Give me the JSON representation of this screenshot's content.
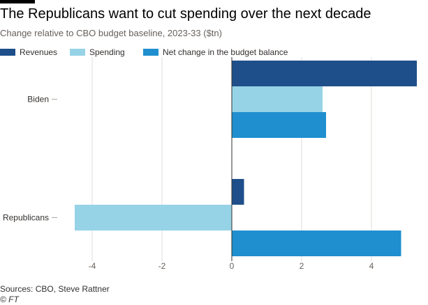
{
  "header": {
    "title": "The Republicans want to cut spending over the next decade",
    "subtitle": "Change relative to CBO budget baseline, 2023-33 ($tn)"
  },
  "footer": {
    "source": "Sources: CBO, Steve Rattner",
    "credit": "© FT"
  },
  "colors": {
    "revenues": "#1e4f8a",
    "spending": "#96d3e6",
    "net": "#1f8fcf",
    "zero_line": "#33302e",
    "grid": "#e2dcd8"
  },
  "chart_data": {
    "type": "bar",
    "orientation": "horizontal",
    "title": "The Republicans want to cut spending over the next decade",
    "subtitle": "Change relative to CBO budget baseline, 2023-33 ($tn)",
    "categories": [
      "Biden",
      "Republicans"
    ],
    "series": [
      {
        "name": "Revenues",
        "values": [
          5.3,
          0.35
        ]
      },
      {
        "name": "Spending",
        "values": [
          2.6,
          -4.5
        ]
      },
      {
        "name": "Net change in the budget balance",
        "values": [
          2.7,
          4.85
        ]
      }
    ],
    "x_ticks": [
      -4,
      -2,
      0,
      2,
      4
    ],
    "xlim": [
      -4.5,
      5.3
    ],
    "grid": true,
    "legend_position": "top-left"
  }
}
